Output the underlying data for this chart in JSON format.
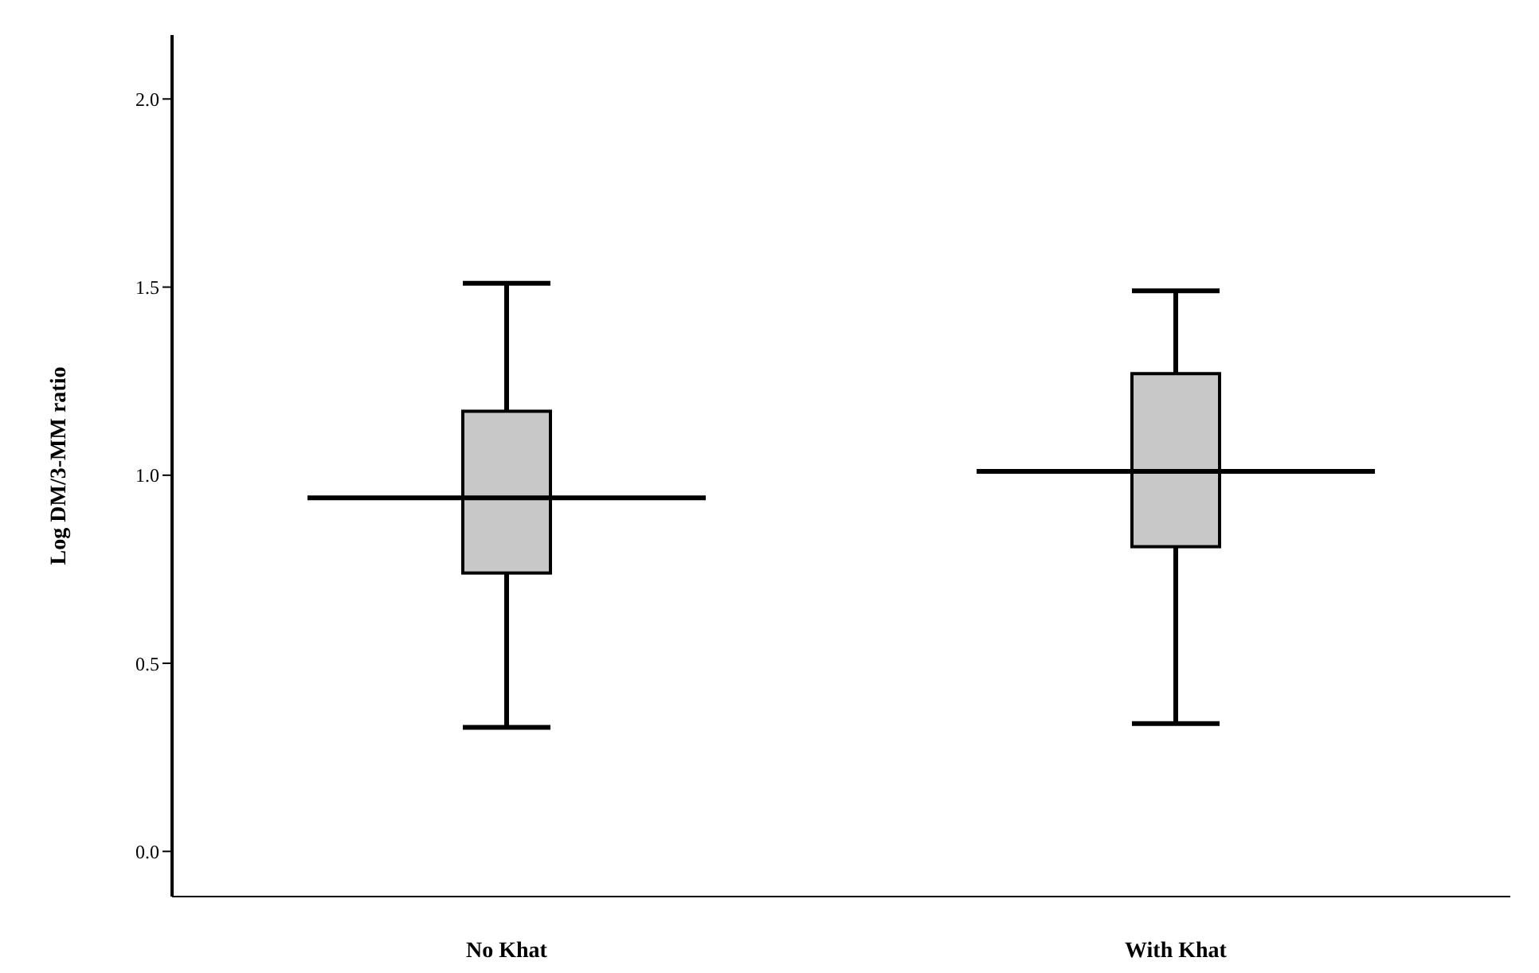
{
  "chart_data": {
    "type": "box",
    "ylabel": "Log DM/3-MM ratio",
    "categories": [
      "No Khat",
      "With Khat"
    ],
    "color": "#c8c8c8",
    "boxes": [
      {
        "low": 0.33,
        "q1": 0.74,
        "median": 0.94,
        "q3": 1.17,
        "high": 1.51
      },
      {
        "low": 0.34,
        "q1": 0.81,
        "median": 1.01,
        "q3": 1.27,
        "high": 1.49
      }
    ],
    "ylim": [
      -0.12,
      2.17
    ],
    "yticks": [
      {
        "value": 0,
        "label": "0.0"
      },
      {
        "value": 0.5,
        "label": "0.5"
      },
      {
        "value": 1,
        "label": "1.0"
      },
      {
        "value": 1.5,
        "label": "1.5"
      },
      {
        "value": 2,
        "label": "2.0"
      }
    ],
    "grid": false
  }
}
